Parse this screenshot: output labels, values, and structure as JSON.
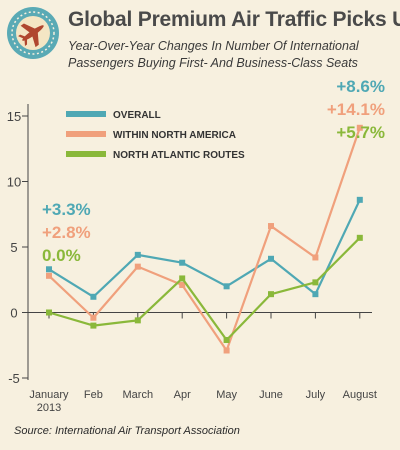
{
  "header": {
    "title": "Global Premium Air Traffic Picks Up",
    "subtitle_line1": "Year-Over-Year Changes In Number Of International",
    "subtitle_line2": "Passengers Buying First- And Business-Class Seats"
  },
  "source": "Source: International Air Transport Association",
  "badge": {
    "icon": "airplane-icon",
    "color": "#5aaab5"
  },
  "chart_data": {
    "type": "line",
    "categories": [
      [
        "January",
        "2013"
      ],
      [
        "Feb"
      ],
      [
        "March"
      ],
      [
        "Apr"
      ],
      [
        "May"
      ],
      [
        "June"
      ],
      [
        "July"
      ],
      [
        "August"
      ]
    ],
    "ylim": [
      -5,
      17
    ],
    "yticks": [
      -5,
      0,
      5,
      10,
      15
    ],
    "grid": false,
    "legend_placement": "top-left",
    "series": [
      {
        "name": "OVERALL",
        "color": "#4fa8b4",
        "values": [
          3.3,
          1.2,
          4.4,
          3.8,
          2.0,
          4.1,
          1.4,
          8.6
        ]
      },
      {
        "name": "WITHIN NORTH AMERICA",
        "color": "#f0a07c",
        "values": [
          2.8,
          -0.4,
          3.5,
          2.1,
          -2.9,
          6.6,
          4.2,
          14.1
        ]
      },
      {
        "name": "NORTH ATLANTIC ROUTES",
        "color": "#8ab83a",
        "values": [
          0.0,
          -1.0,
          -0.6,
          2.6,
          -2.1,
          1.4,
          2.3,
          5.7
        ]
      }
    ],
    "annotations": {
      "start": [
        "+3.3%",
        "+2.8%",
        "0.0%"
      ],
      "end": [
        "+8.6%",
        "+14.1%",
        "+5.7%"
      ]
    }
  }
}
